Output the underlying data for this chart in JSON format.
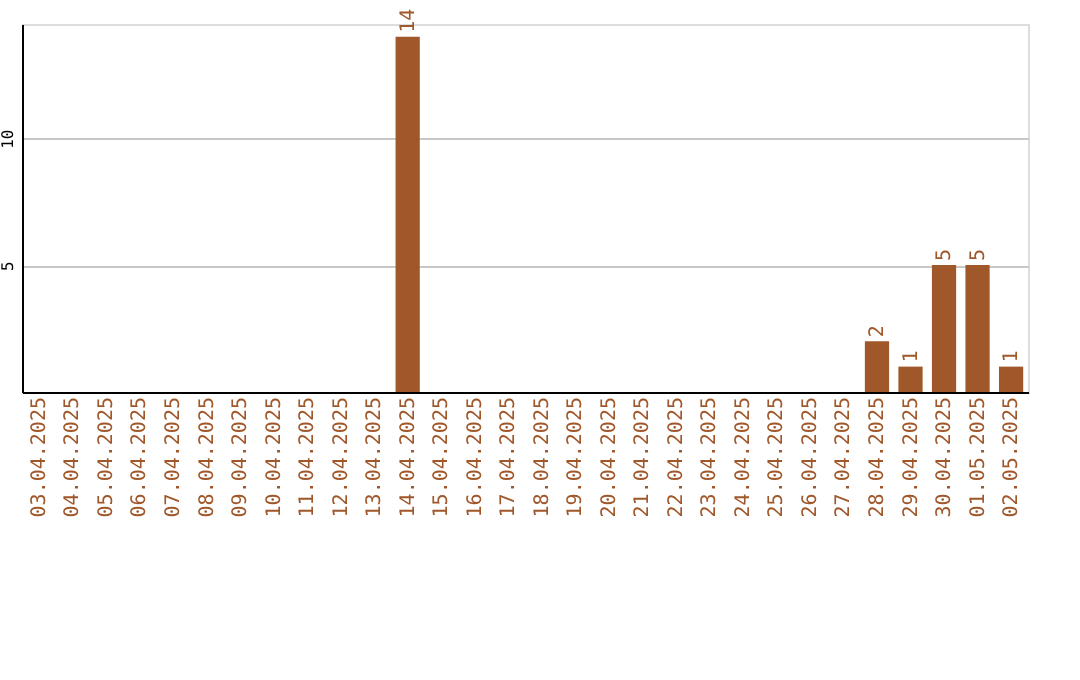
{
  "chart_data": {
    "type": "bar",
    "categories": [
      "03.04.2025",
      "04.04.2025",
      "05.04.2025",
      "06.04.2025",
      "07.04.2025",
      "08.04.2025",
      "09.04.2025",
      "10.04.2025",
      "11.04.2025",
      "12.04.2025",
      "13.04.2025",
      "14.04.2025",
      "15.04.2025",
      "16.04.2025",
      "17.04.2025",
      "18.04.2025",
      "19.04.2025",
      "20.04.2025",
      "21.04.2025",
      "22.04.2025",
      "23.04.2025",
      "24.04.2025",
      "25.04.2025",
      "26.04.2025",
      "27.04.2025",
      "28.04.2025",
      "29.04.2025",
      "30.04.2025",
      "01.05.2025",
      "02.05.2025"
    ],
    "values": [
      0,
      0,
      0,
      0,
      0,
      0,
      0,
      0,
      0,
      0,
      0,
      14,
      0,
      0,
      0,
      0,
      0,
      0,
      0,
      0,
      0,
      0,
      0,
      0,
      0,
      2,
      1,
      5,
      5,
      1
    ],
    "value_labels": [
      null,
      null,
      null,
      null,
      null,
      null,
      null,
      null,
      null,
      null,
      null,
      "14",
      null,
      null,
      null,
      null,
      null,
      null,
      null,
      null,
      null,
      null,
      null,
      null,
      null,
      "2",
      "1",
      "5",
      "5",
      "1"
    ],
    "color": "#a0572a",
    "ylim": [
      0,
      14.5
    ],
    "yticks": [
      5,
      10
    ],
    "grid": "y"
  }
}
